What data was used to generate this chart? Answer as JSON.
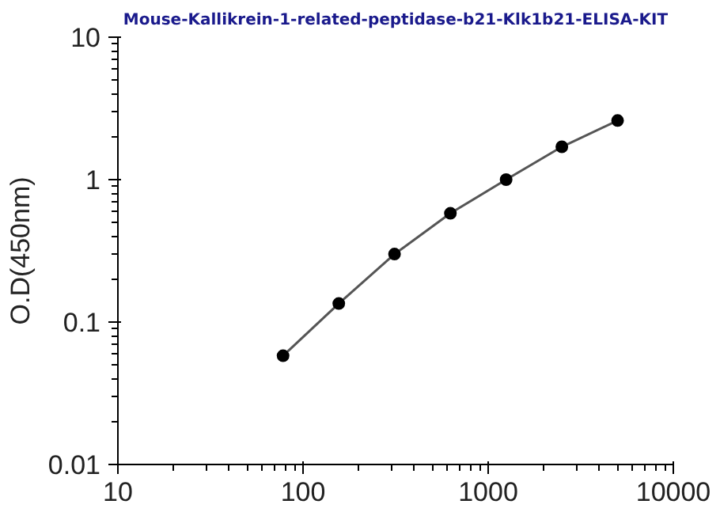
{
  "chart_data": {
    "type": "line",
    "title": "Mouse-Kallikrein-1-related-peptidase-b21-Klk1b21-ELISA-KIT",
    "ylabel": "O.D(450nm)",
    "x": [
      78,
      156,
      312,
      625,
      1250,
      2500,
      5000
    ],
    "series": [
      {
        "color": "#555555",
        "values": [
          0.058,
          0.135,
          0.3,
          0.58,
          1.0,
          1.7,
          2.6
        ]
      }
    ],
    "log": "xy",
    "xlim": [
      10,
      10000
    ],
    "ylim": [
      0.01,
      10
    ],
    "xticks": [
      10,
      100,
      1000,
      10000
    ],
    "yticks": [
      0.01,
      0.1,
      1,
      10
    ],
    "marker": "circle",
    "line_style": "solid",
    "grid": false
  }
}
